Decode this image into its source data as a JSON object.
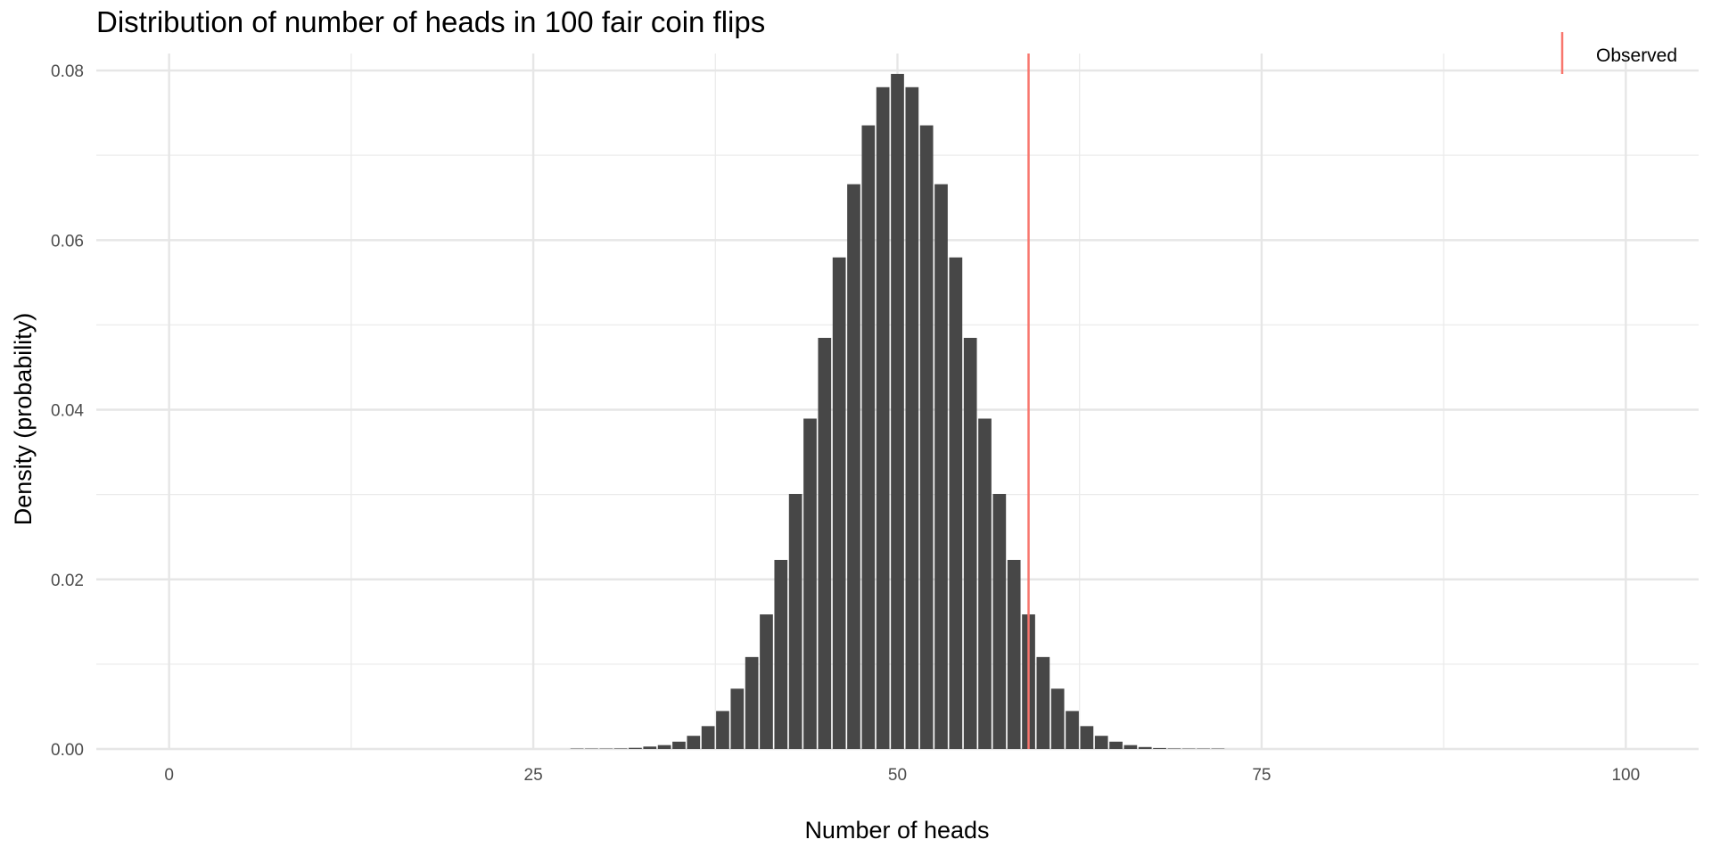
{
  "chart_data": {
    "type": "bar",
    "title": "Distribution of number of heads in 100 fair coin flips",
    "xlabel": "Number of heads",
    "ylabel": "Density (probability)",
    "xlim": [
      -5,
      105
    ],
    "ylim": [
      0,
      0.082
    ],
    "x_ticks": [
      0,
      25,
      50,
      75,
      100
    ],
    "x_tick_labels": [
      "0",
      "25",
      "50",
      "75",
      "100"
    ],
    "y_ticks": [
      0,
      0.02,
      0.04,
      0.06,
      0.08
    ],
    "y_tick_labels": [
      "0.00",
      "0.02",
      "0.04",
      "0.06",
      "0.08"
    ],
    "grid": true,
    "bar_color": "#474747",
    "x": [
      28,
      29,
      30,
      31,
      32,
      33,
      34,
      35,
      36,
      37,
      38,
      39,
      40,
      41,
      42,
      43,
      44,
      45,
      46,
      47,
      48,
      49,
      50,
      51,
      52,
      53,
      54,
      55,
      56,
      57,
      58,
      59,
      60,
      61,
      62,
      63,
      64,
      65,
      66,
      67,
      68,
      69,
      70,
      71,
      72
    ],
    "values": [
      9e-06,
      2.3e-05,
      2.3e-05,
      5.8e-05,
      0.000136,
      0.000289,
      0.000458,
      0.000864,
      0.001553,
      0.002697,
      0.004478,
      0.007111,
      0.010843,
      0.015869,
      0.022292,
      0.030069,
      0.038953,
      0.048474,
      0.057958,
      0.06659,
      0.073527,
      0.078029,
      0.079589,
      0.078029,
      0.073527,
      0.06659,
      0.057958,
      0.048474,
      0.038953,
      0.030069,
      0.022292,
      0.015869,
      0.010843,
      0.007111,
      0.004478,
      0.002697,
      0.001553,
      0.000864,
      0.000458,
      0.000232,
      0.000114,
      5.4e-05,
      2.3e-05,
      1e-05,
      4e-06
    ],
    "reference_line": {
      "x": 59,
      "color": "#f8766d"
    },
    "legend": {
      "position": "top-right",
      "entries": [
        {
          "label": "Observed",
          "color": "#f8766d"
        }
      ]
    }
  }
}
